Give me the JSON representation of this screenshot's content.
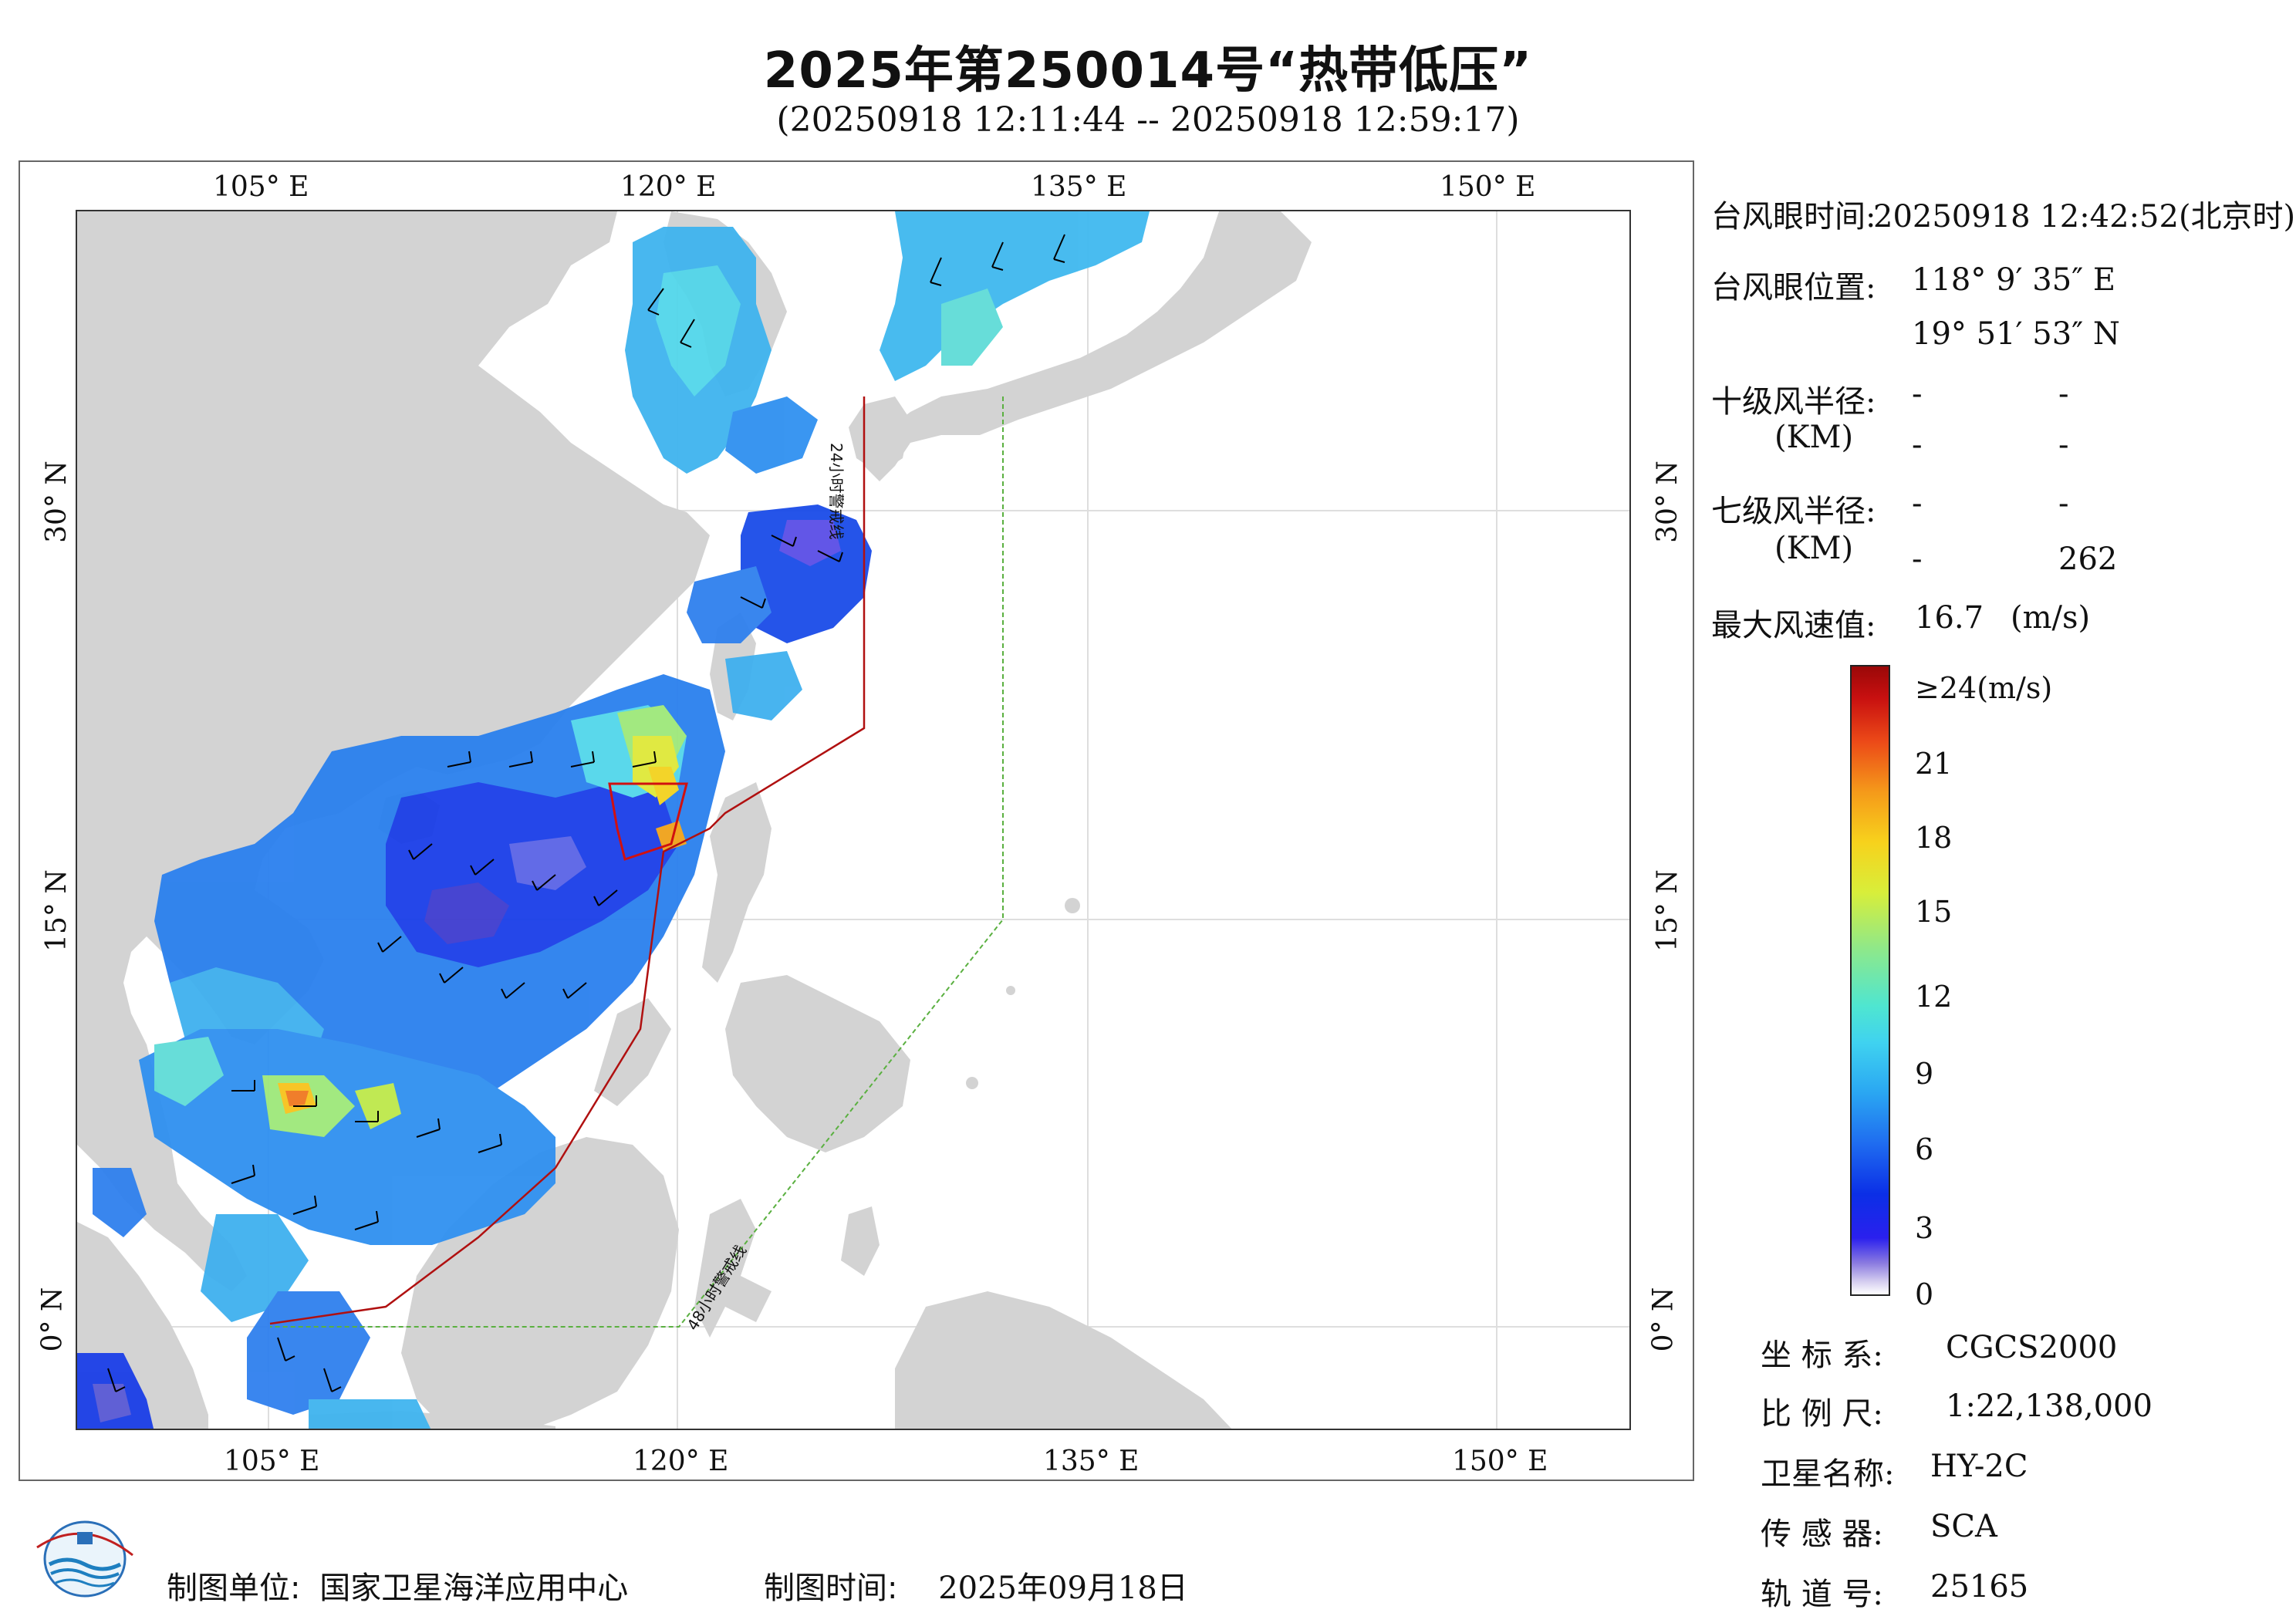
{
  "title": "2025年第250014号“热带低压”",
  "subtitle": "(20250918 12:11:44 -- 20250918 12:59:17)",
  "map": {
    "lon_ticks": [
      "105° E",
      "120° E",
      "135° E",
      "150° E"
    ],
    "lat_ticks": [
      "30° N",
      "15° N",
      "0° N"
    ],
    "warning_24h": "24小时警戒线",
    "warning_48h": "48小时警戒线"
  },
  "info": {
    "eye_time_label": "台风眼时间:",
    "eye_time_value": "20250918 12:42:52(北京时)",
    "eye_pos_label": "台风眼位置:",
    "eye_lon": "118° 9′ 35″ E",
    "eye_lat": "19° 51′ 53″ N",
    "r10_label": "十级风半径:",
    "km_label": "(KM)",
    "r10_a": "-",
    "r10_b": "-",
    "r10_c": "-",
    "r10_d": "-",
    "r7_label": "七级风半径:",
    "r7_a": "-",
    "r7_b": "-",
    "r7_c": "-",
    "r7_d": "262",
    "max_wind_label": "最大风速值:",
    "max_wind_value": "16.7",
    "max_wind_unit": "(m/s)"
  },
  "colorbar": {
    "labels": [
      "≥24(m/s)",
      "21",
      "18",
      "15",
      "12",
      "9",
      "6",
      "3",
      "0"
    ]
  },
  "meta": {
    "crs_label": "坐 标 系:",
    "crs_value": "CGCS2000",
    "scale_label": "比 例 尺:",
    "scale_value": "1:22,138,000",
    "satellite_label": "卫星名称:",
    "satellite_value": "HY-2C",
    "sensor_label": "传 感 器:",
    "sensor_value": "SCA",
    "orbit_label": "轨 道 号:",
    "orbit_value": "25165"
  },
  "footer": {
    "unit_label": "制图单位:",
    "unit_value": "国家卫星海洋应用中心",
    "time_label": "制图时间:",
    "time_value": "2025年09月18日"
  },
  "colors": {
    "land": "#d3d3d3",
    "warning_24h_line": "#b01010",
    "warning_48h_line": "#5ab040",
    "grid": "#dddddd"
  }
}
